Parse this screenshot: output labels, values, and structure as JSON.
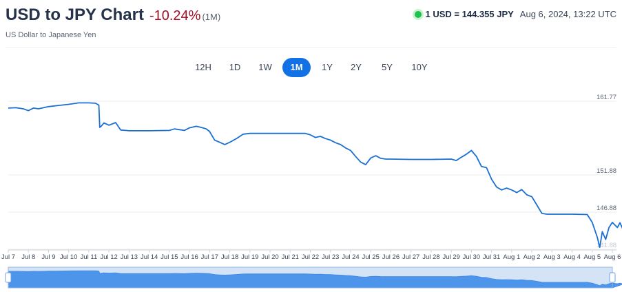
{
  "header": {
    "title": "USD to JPY Chart",
    "change": "-10.24%",
    "period": "(1M)",
    "subtitle": "US Dollar to Japanese Yen",
    "rate": "1 USD = 144.355 JPY",
    "timestamp": "Aug 6, 2024, 13:22 UTC"
  },
  "tabs": [
    {
      "label": "12H"
    },
    {
      "label": "1D"
    },
    {
      "label": "1W"
    },
    {
      "label": "1M",
      "active": true
    },
    {
      "label": "1Y"
    },
    {
      "label": "2Y"
    },
    {
      "label": "5Y"
    },
    {
      "label": "10Y"
    }
  ],
  "colors": {
    "line": "#1a6fd4",
    "accent": "#1371e6",
    "negative": "#a30f26",
    "live": "#1ec24a",
    "navigator_fill": "#4d95ea",
    "navigator_selected": "#d4e3f6"
  },
  "chart_data": {
    "type": "line",
    "y_ticks": [
      "161.77",
      "151.88",
      "146.88",
      "141.88"
    ],
    "ylim": [
      141.88,
      162.6
    ],
    "x_tick_labels": [
      "Jul 7",
      "Jul 8",
      "Jul 9",
      "Jul 10",
      "Jul 11",
      "Jul 12",
      "Jul 13",
      "Jul 14",
      "Jul 15",
      "Jul 16",
      "Jul 17",
      "Jul 18",
      "Jul 19",
      "Jul 20",
      "Jul 21",
      "Jul 22",
      "Jul 23",
      "Jul 24",
      "Jul 25",
      "Jul 26",
      "Jul 27",
      "Jul 28",
      "Jul 29",
      "Jul 30",
      "Jul 31",
      "Aug 1",
      "Aug 2",
      "Aug 3",
      "Aug 4",
      "Aug 5",
      "Aug 6"
    ],
    "series": [
      {
        "values": [
          [
            "Jul 7 00:00",
            160.85
          ],
          [
            "Jul 7 09:00",
            160.9
          ],
          [
            "Jul 7 18:00",
            160.75
          ],
          [
            "Jul 8 00:00",
            160.5
          ],
          [
            "Jul 8 06:00",
            160.85
          ],
          [
            "Jul 8 12:00",
            160.75
          ],
          [
            "Jul 8 18:00",
            160.9
          ],
          [
            "Jul 9 00:00",
            161.05
          ],
          [
            "Jul 9 12:00",
            161.2
          ],
          [
            "Jul 10 00:00",
            161.35
          ],
          [
            "Jul 10 12:00",
            161.55
          ],
          [
            "Jul 11 00:00",
            161.55
          ],
          [
            "Jul 11 08:00",
            161.5
          ],
          [
            "Jul 11 12:00",
            161.25
          ],
          [
            "Jul 11 13:00",
            158.25
          ],
          [
            "Jul 11 15:00",
            158.45
          ],
          [
            "Jul 11 18:00",
            158.85
          ],
          [
            "Jul 12 00:00",
            158.55
          ],
          [
            "Jul 12 08:00",
            158.9
          ],
          [
            "Jul 12 14:00",
            157.9
          ],
          [
            "Jul 12 20:00",
            157.85
          ],
          [
            "Jul 13 00:00",
            157.8
          ],
          [
            "Jul 14 00:00",
            157.8
          ],
          [
            "Jul 15 00:00",
            157.85
          ],
          [
            "Jul 15 06:00",
            158.05
          ],
          [
            "Jul 15 12:00",
            157.95
          ],
          [
            "Jul 15 18:00",
            157.85
          ],
          [
            "Jul 16 00:00",
            158.2
          ],
          [
            "Jul 16 08:00",
            158.4
          ],
          [
            "Jul 16 14:00",
            158.25
          ],
          [
            "Jul 16 20:00",
            158.05
          ],
          [
            "Jul 17 00:00",
            157.7
          ],
          [
            "Jul 17 06:00",
            156.55
          ],
          [
            "Jul 17 12:00",
            156.25
          ],
          [
            "Jul 17 18:00",
            155.95
          ],
          [
            "Jul 18 00:00",
            156.25
          ],
          [
            "Jul 18 08:00",
            156.75
          ],
          [
            "Jul 18 16:00",
            157.35
          ],
          [
            "Jul 19 00:00",
            157.45
          ],
          [
            "Jul 19 12:00",
            157.45
          ],
          [
            "Jul 20 00:00",
            157.45
          ],
          [
            "Jul 21 00:00",
            157.45
          ],
          [
            "Jul 21 18:00",
            157.45
          ],
          [
            "Jul 22 00:00",
            157.25
          ],
          [
            "Jul 22 06:00",
            156.9
          ],
          [
            "Jul 22 12:00",
            157.05
          ],
          [
            "Jul 22 18:00",
            156.75
          ],
          [
            "Jul 23 00:00",
            156.55
          ],
          [
            "Jul 23 06:00",
            156.2
          ],
          [
            "Jul 23 12:00",
            155.95
          ],
          [
            "Jul 23 18:00",
            155.5
          ],
          [
            "Jul 24 00:00",
            155.15
          ],
          [
            "Jul 24 06:00",
            154.35
          ],
          [
            "Jul 24 12:00",
            153.6
          ],
          [
            "Jul 24 18:00",
            153.25
          ],
          [
            "Jul 25 00:00",
            154.15
          ],
          [
            "Jul 25 06:00",
            154.45
          ],
          [
            "Jul 25 12:00",
            154.1
          ],
          [
            "Jul 25 18:00",
            154.0
          ],
          [
            "Jul 26 00:00",
            154.0
          ],
          [
            "Jul 27 00:00",
            153.95
          ],
          [
            "Jul 28 00:00",
            153.95
          ],
          [
            "Jul 29 00:00",
            154.0
          ],
          [
            "Jul 29 06:00",
            153.8
          ],
          [
            "Jul 29 12:00",
            154.25
          ],
          [
            "Jul 29 18:00",
            154.65
          ],
          [
            "Jul 30 00:00",
            155.15
          ],
          [
            "Jul 30 06:00",
            154.35
          ],
          [
            "Jul 30 12:00",
            153.0
          ],
          [
            "Jul 30 18:00",
            152.85
          ],
          [
            "Jul 31 00:00",
            151.3
          ],
          [
            "Jul 31 06:00",
            150.25
          ],
          [
            "Jul 31 12:00",
            149.85
          ],
          [
            "Jul 31 18:00",
            150.1
          ],
          [
            "Aug 1 00:00",
            149.85
          ],
          [
            "Aug 1 06:00",
            149.5
          ],
          [
            "Aug 1 12:00",
            149.9
          ],
          [
            "Aug 1 18:00",
            149.2
          ],
          [
            "Aug 2 00:00",
            148.95
          ],
          [
            "Aug 2 12:00",
            146.7
          ],
          [
            "Aug 2 18:00",
            146.6
          ],
          [
            "Aug 3 00:00",
            146.6
          ],
          [
            "Aug 4 00:00",
            146.6
          ],
          [
            "Aug 4 18:00",
            146.55
          ],
          [
            "Aug 5 00:00",
            145.5
          ],
          [
            "Aug 5 06:00",
            143.5
          ],
          [
            "Aug 5 09:00",
            142.15
          ],
          [
            "Aug 5 12:00",
            144.25
          ],
          [
            "Aug 5 16:00",
            143.2
          ],
          [
            "Aug 5 20:00",
            144.8
          ],
          [
            "Aug 6 00:00",
            145.5
          ],
          [
            "Aug 6 06:00",
            144.8
          ],
          [
            "Aug 6 09:00",
            145.45
          ],
          [
            "Aug 6 13:22",
            144.36
          ]
        ]
      }
    ],
    "grid": true,
    "navigator": true
  }
}
